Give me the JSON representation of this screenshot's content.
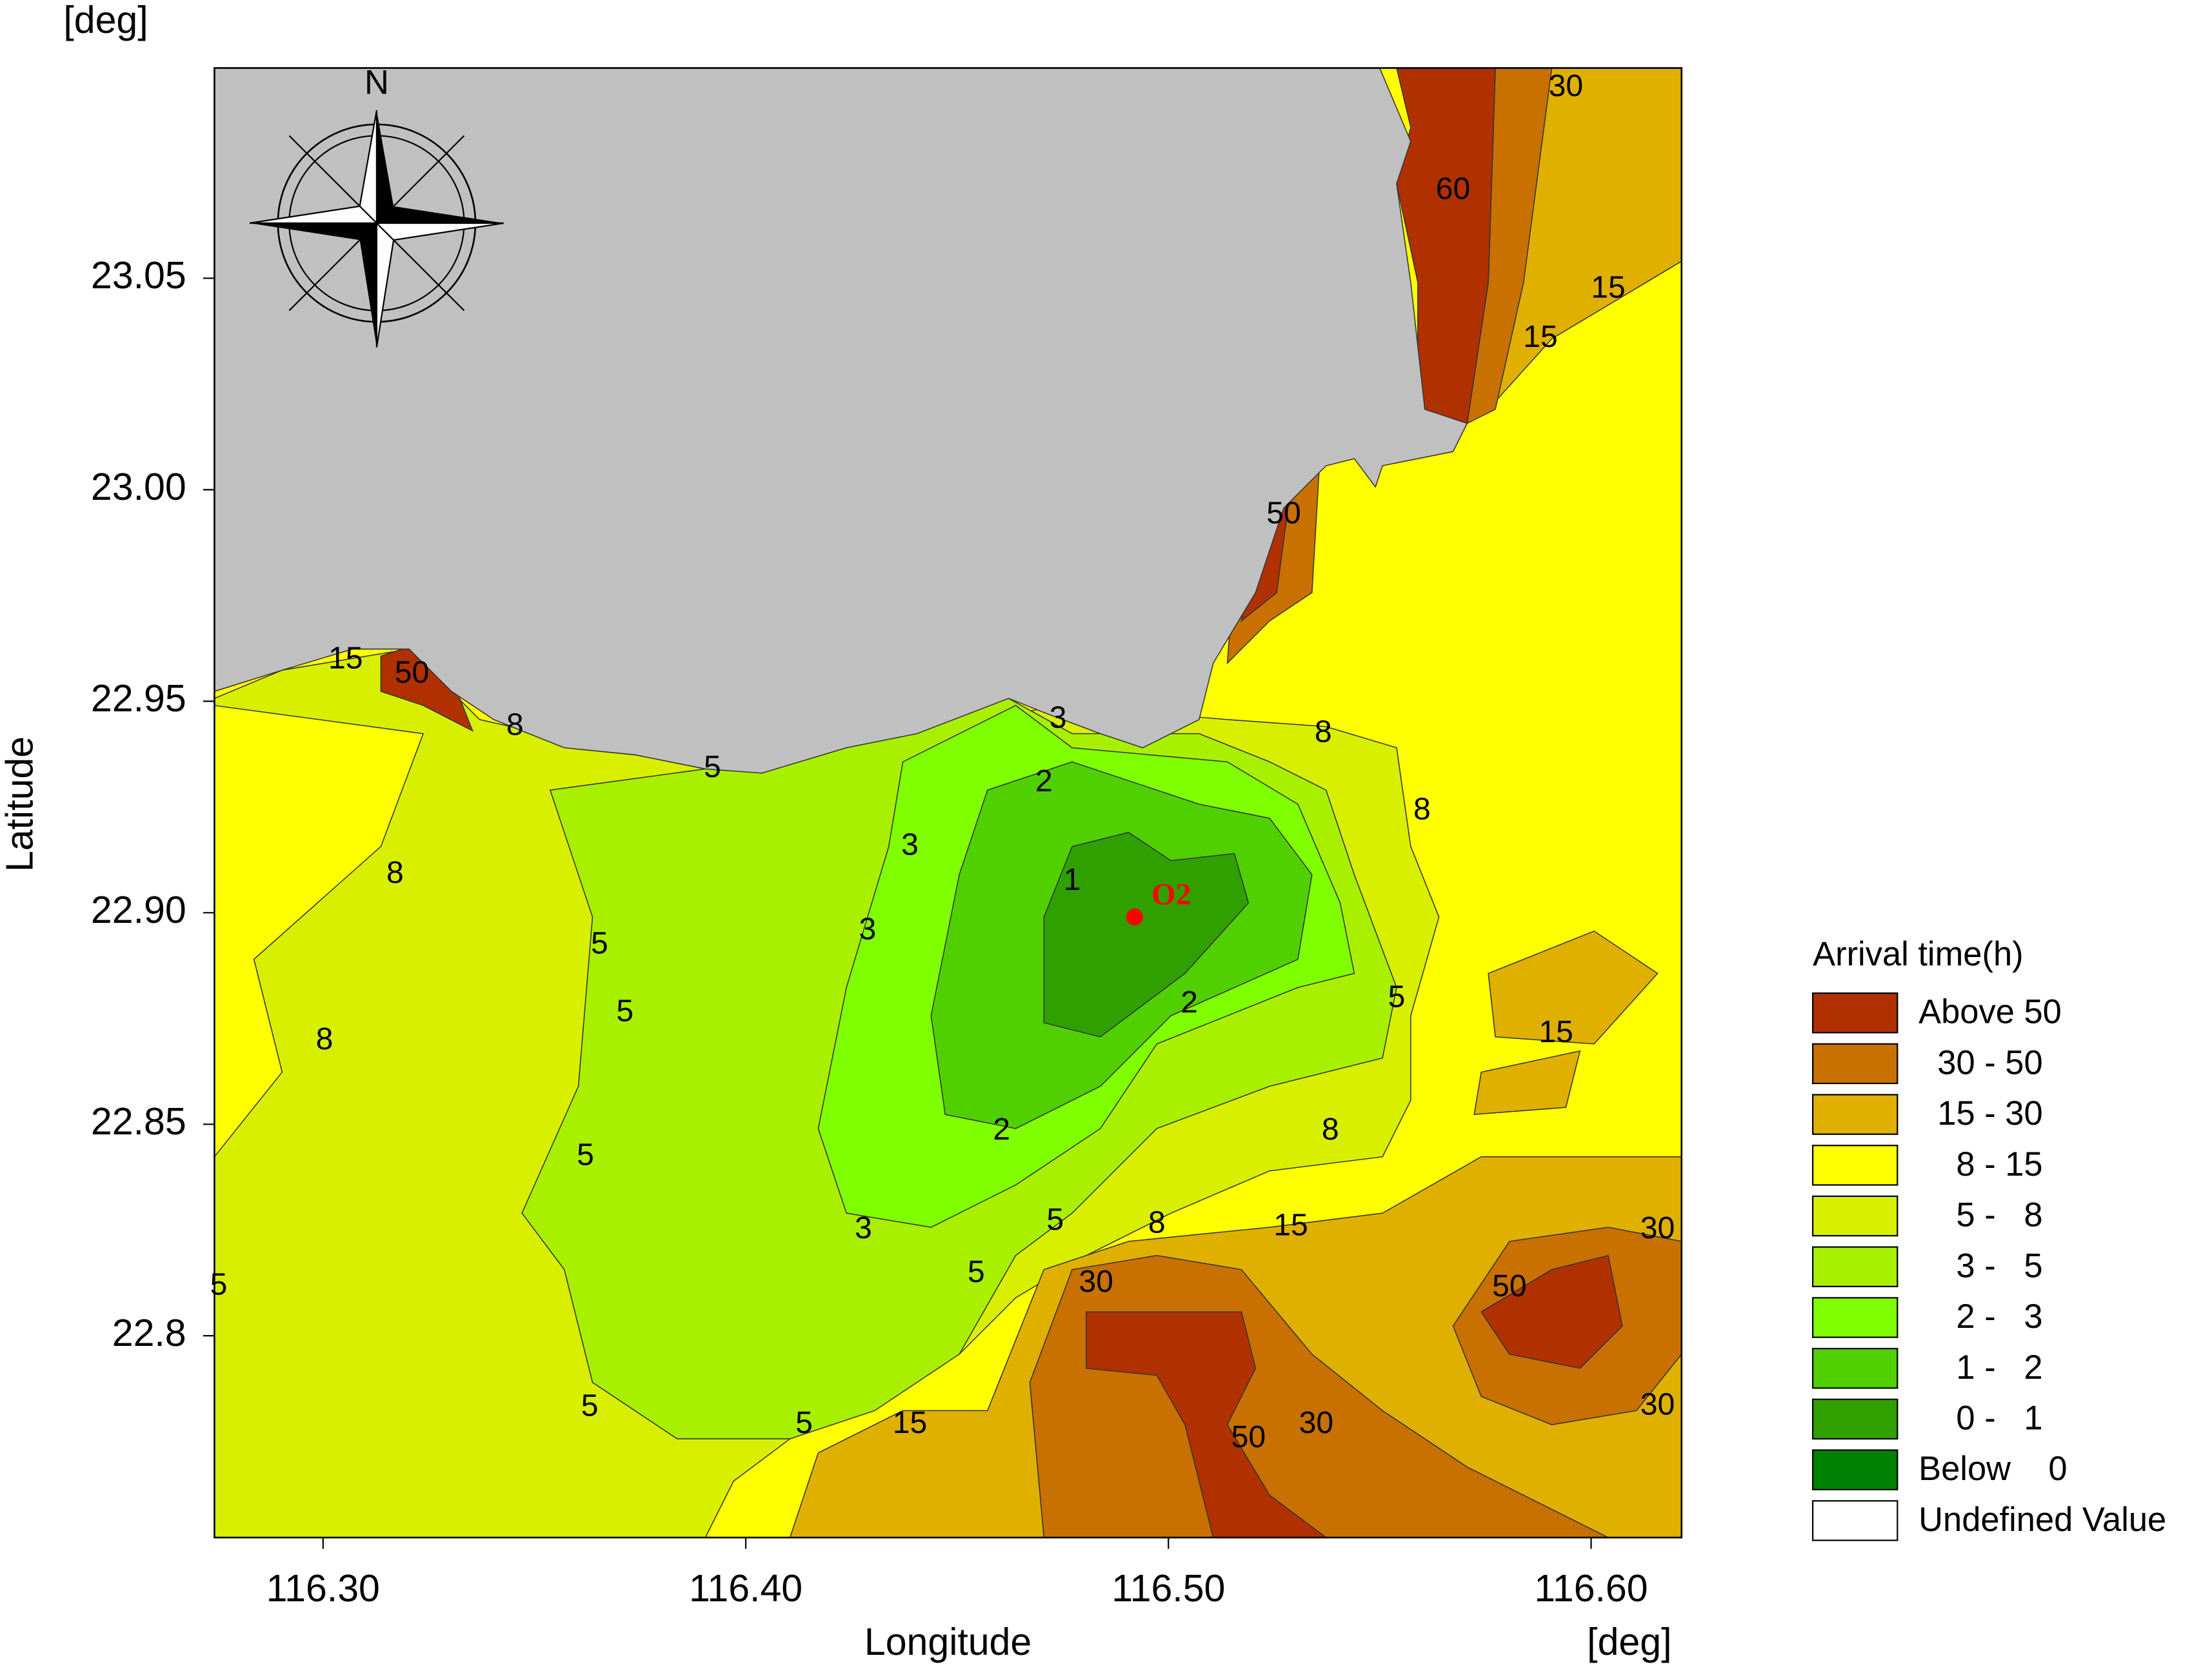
{
  "chart_data": {
    "type": "contour-map",
    "x_unit": "[deg]",
    "y_unit": "[deg]",
    "xlabel": "Longitude",
    "ylabel": "Latitude",
    "xlim": [
      116.2743,
      116.6214
    ],
    "ylim": [
      22.7523,
      23.0997
    ],
    "xticks": [
      {
        "value": 116.3,
        "label": "116.30"
      },
      {
        "value": 116.4,
        "label": "116.40"
      },
      {
        "value": 116.5,
        "label": "116.50"
      },
      {
        "value": 116.6,
        "label": "116.60"
      }
    ],
    "yticks": [
      22.8,
      22.85,
      {
        "value": 22.9,
        "label": "22.90"
      },
      22.95,
      {
        "value": 23.0,
        "label": "23.00"
      },
      23.05
    ],
    "compass": "N",
    "legend_title": "Arrival time(h)",
    "legend": [
      {
        "label": "Above 50",
        "color": "#b03000"
      },
      {
        "label": "  30 - 50",
        "color": "#c87000"
      },
      {
        "label": "  15 - 30",
        "color": "#e0b000"
      },
      {
        "label": "    8 - 15",
        "color": "#ffff00"
      },
      {
        "label": "    5 -   8",
        "color": "#d8f000"
      },
      {
        "label": "    3 -   5",
        "color": "#a8f000"
      },
      {
        "label": "    2 -   3",
        "color": "#80ff00"
      },
      {
        "label": "    1 -   2",
        "color": "#50d000"
      },
      {
        "label": "    0 -   1",
        "color": "#30a000"
      },
      {
        "label": "Below    0",
        "color": "#008000"
      },
      {
        "label": "Undefined Value",
        "color": "#ffffff"
      }
    ],
    "land_color": "#c0c0c0",
    "point": {
      "label": "O2",
      "x": 116.492,
      "y": 22.899,
      "color": "#ff0000"
    },
    "contour_labels": [
      "30",
      "60",
      "15",
      "15",
      "50",
      "15",
      "50",
      "8",
      "5",
      "3",
      "2",
      "3",
      "8",
      "8",
      "1",
      "8",
      "3",
      "5",
      "5",
      "2",
      "5",
      "8",
      "15",
      "2",
      "8",
      "5",
      "3",
      "5",
      "8",
      "15",
      "30",
      "5",
      "5",
      "30",
      "50",
      "5",
      "5",
      "15",
      "30",
      "50",
      "30"
    ]
  }
}
